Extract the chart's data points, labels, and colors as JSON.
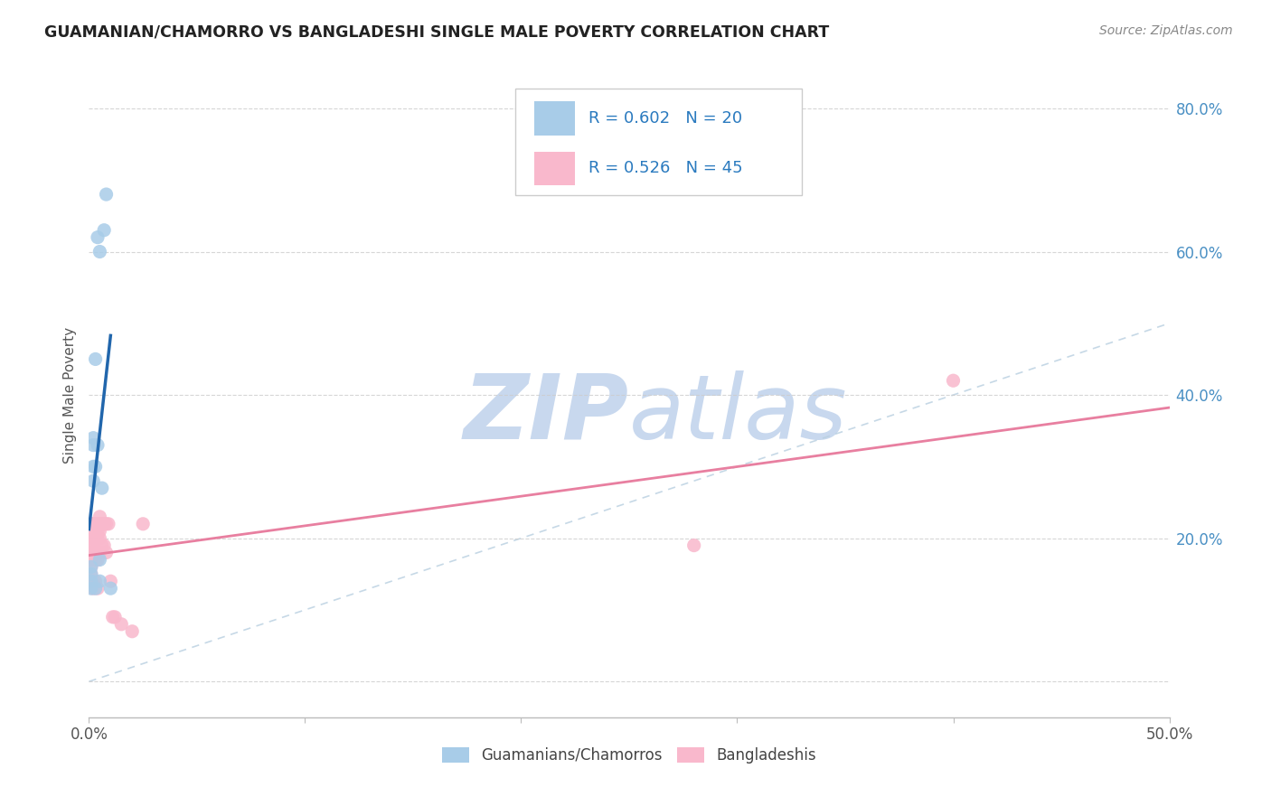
{
  "title": "GUAMANIAN/CHAMORRO VS BANGLADESHI SINGLE MALE POVERTY CORRELATION CHART",
  "source": "Source: ZipAtlas.com",
  "ylabel": "Single Male Poverty",
  "legend_label1": "Guamanians/Chamorros",
  "legend_label2": "Bangladeshis",
  "legend_R1": "R = 0.602",
  "legend_N1": "N = 20",
  "legend_R2": "R = 0.526",
  "legend_N2": "N = 45",
  "color_blue": "#a8cce8",
  "color_pink": "#f9b8cc",
  "color_blue_line": "#2166ac",
  "color_pink_line": "#e87fa0",
  "color_diagonal": "#b8cfe0",
  "xlim": [
    0,
    0.5
  ],
  "ylim": [
    -0.05,
    0.85
  ],
  "guamanian_x": [
    0.001,
    0.001,
    0.001,
    0.001,
    0.002,
    0.002,
    0.002,
    0.002,
    0.003,
    0.003,
    0.003,
    0.004,
    0.004,
    0.005,
    0.005,
    0.005,
    0.006,
    0.007,
    0.008,
    0.01
  ],
  "guamanian_y": [
    0.13,
    0.14,
    0.15,
    0.16,
    0.28,
    0.3,
    0.33,
    0.34,
    0.13,
    0.3,
    0.45,
    0.33,
    0.62,
    0.14,
    0.17,
    0.6,
    0.27,
    0.63,
    0.68,
    0.13
  ],
  "bangladeshi_x": [
    0.001,
    0.001,
    0.001,
    0.001,
    0.001,
    0.001,
    0.001,
    0.001,
    0.001,
    0.002,
    0.002,
    0.002,
    0.002,
    0.002,
    0.002,
    0.003,
    0.003,
    0.003,
    0.003,
    0.003,
    0.004,
    0.004,
    0.004,
    0.004,
    0.004,
    0.005,
    0.005,
    0.005,
    0.005,
    0.005,
    0.006,
    0.006,
    0.007,
    0.007,
    0.008,
    0.008,
    0.009,
    0.01,
    0.011,
    0.012,
    0.015,
    0.02,
    0.025,
    0.4,
    0.28
  ],
  "bangladeshi_y": [
    0.14,
    0.15,
    0.16,
    0.17,
    0.18,
    0.19,
    0.2,
    0.21,
    0.22,
    0.13,
    0.14,
    0.18,
    0.19,
    0.2,
    0.22,
    0.14,
    0.17,
    0.18,
    0.2,
    0.22,
    0.13,
    0.17,
    0.2,
    0.21,
    0.22,
    0.18,
    0.2,
    0.21,
    0.22,
    0.23,
    0.19,
    0.22,
    0.19,
    0.22,
    0.18,
    0.22,
    0.22,
    0.14,
    0.09,
    0.09,
    0.08,
    0.07,
    0.22,
    0.42,
    0.19
  ],
  "background_color": "#ffffff",
  "watermark_zip": "ZIP",
  "watermark_atlas": "atlas",
  "watermark_color": "#c8d8ee"
}
